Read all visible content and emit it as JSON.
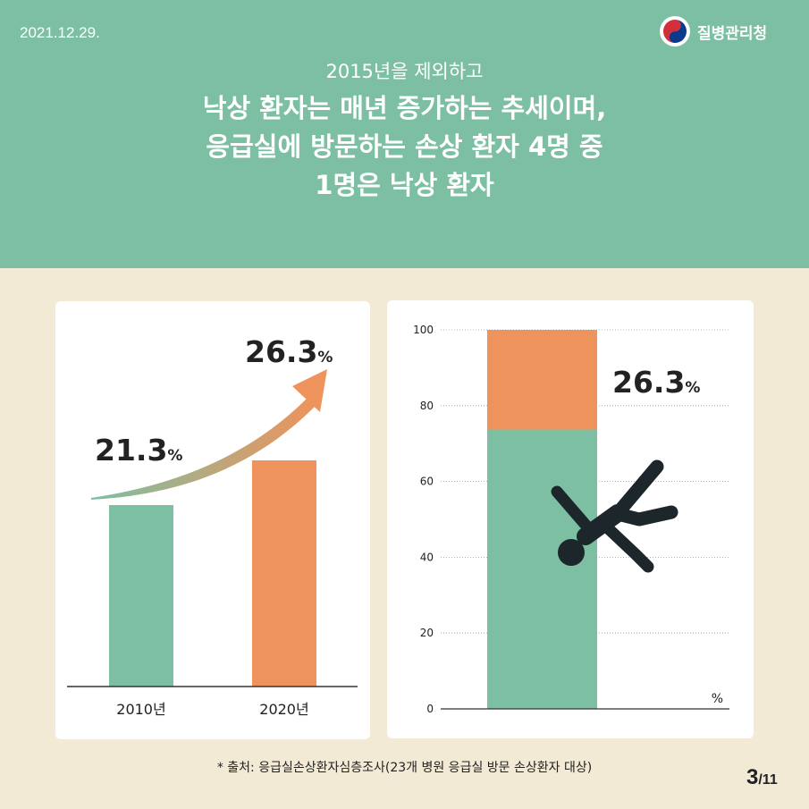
{
  "date": "2021.12.29.",
  "org_name": "질병관리청",
  "subtitle": "2015년을 제외하고",
  "headline_lines": [
    "낙상 환자는 매년 증가하는 추세이며,",
    "응급실에 방문하는 손상 환자 4명 중",
    "1명은 낙상 환자"
  ],
  "chart_data": [
    {
      "type": "bar",
      "categories": [
        "2010년",
        "2020년"
      ],
      "values": [
        21.3,
        26.3
      ],
      "value_labels": [
        "21.3",
        "26.3"
      ],
      "value_unit": "%",
      "colors": [
        "#7dbfa3",
        "#ee935c"
      ],
      "trend_arrow": true
    },
    {
      "type": "bar",
      "stacked": true,
      "total": 100,
      "highlight_value": 26.3,
      "highlight_label": "26.3",
      "value_unit": "%",
      "unit_label": "%",
      "yticks": [
        0,
        20,
        40,
        60,
        80,
        100
      ],
      "ylim": [
        0,
        100
      ],
      "colors": {
        "rest": "#7dbfa3",
        "highlight": "#ee935c"
      },
      "grid": true,
      "illustration": "falling-person-icon"
    }
  ],
  "footnote": "* 출처: 응급실손상환자심층조사(23개 병원 응급실 방문 손상환자 대상)",
  "page": {
    "current": "3",
    "total": "/11"
  }
}
